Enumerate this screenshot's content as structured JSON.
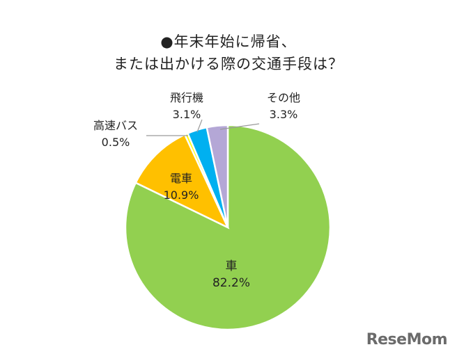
{
  "chart_data": {
    "type": "pie",
    "title": "●年末年始に帰省、",
    "subtitle": "または出かける際の交通手段は？",
    "start": "top",
    "direction": "clockwise",
    "slices": [
      {
        "label": "車",
        "value": 82.2,
        "value_label": "82.2%",
        "color": "#92d050"
      },
      {
        "label": "電車",
        "value": 10.9,
        "value_label": "10.9%",
        "color": "#ffc000"
      },
      {
        "label": "高速バス",
        "value": 0.5,
        "value_label": "0.5%",
        "color": "#ffff00"
      },
      {
        "label": "飛行機",
        "value": 3.1,
        "value_label": "3.1%",
        "color": "#00b0f0"
      },
      {
        "label": "その他",
        "value": 3.3,
        "value_label": "3.3%",
        "color": "#b4a7d6"
      }
    ]
  },
  "watermark": "ReseMom"
}
